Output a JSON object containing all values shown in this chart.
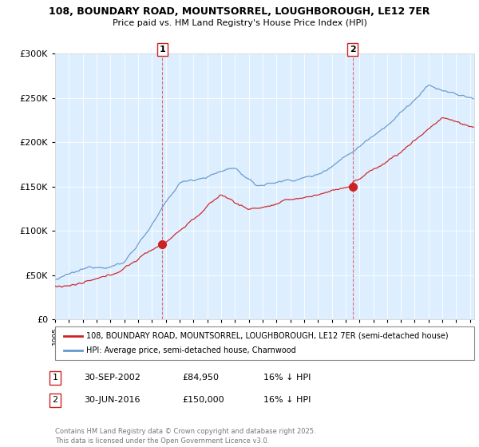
{
  "title1": "108, BOUNDARY ROAD, MOUNTSORREL, LOUGHBOROUGH, LE12 7ER",
  "title2": "Price paid vs. HM Land Registry's House Price Index (HPI)",
  "bg_color": "#ddeeff",
  "red_color": "#cc2222",
  "blue_color": "#6699cc",
  "marker1_year": 2002.75,
  "marker1_price": 84950,
  "marker2_year": 2016.5,
  "marker2_price": 150000,
  "legend_line1": "108, BOUNDARY ROAD, MOUNTSORREL, LOUGHBOROUGH, LE12 7ER (semi-detached house)",
  "legend_line2": "HPI: Average price, semi-detached house, Charnwood",
  "note1_date": "30-SEP-2002",
  "note1_price": "£84,950",
  "note1_hpi": "16% ↓ HPI",
  "note2_date": "30-JUN-2016",
  "note2_price": "£150,000",
  "note2_hpi": "16% ↓ HPI",
  "footer": "Contains HM Land Registry data © Crown copyright and database right 2025.\nThis data is licensed under the Open Government Licence v3.0.",
  "ylim": [
    0,
    300000
  ],
  "xlim_start": 1995.0,
  "xlim_end": 2025.3
}
